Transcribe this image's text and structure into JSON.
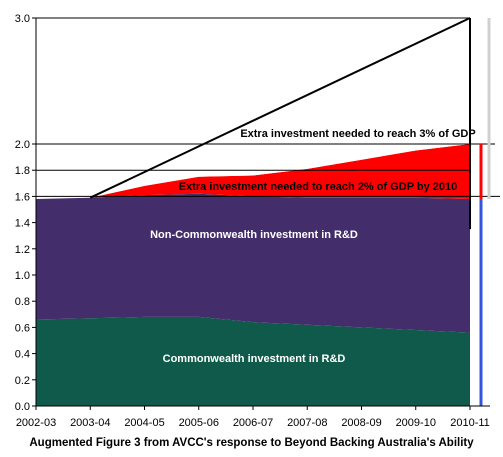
{
  "chart_data": {
    "type": "area",
    "categories": [
      "2002-03",
      "2003-04",
      "2004-05",
      "2005-06",
      "2006-07",
      "2007-08",
      "2008-09",
      "2009-10",
      "2010-11"
    ],
    "ylim": [
      0,
      3.0
    ],
    "yticks": [
      "0.0",
      "0.2",
      "0.4",
      "0.6",
      "0.8",
      "1.0",
      "1.2",
      "1.4",
      "1.6",
      "1.8",
      "2.0",
      "3.0"
    ],
    "ytick_values": [
      0,
      0.2,
      0.4,
      0.6,
      0.8,
      1.0,
      1.2,
      1.4,
      1.6,
      1.8,
      2.0,
      3.0
    ],
    "series": [
      {
        "name": "Commonwealth investment in R&D",
        "color": "#0f5a4b",
        "values": [
          0.66,
          0.67,
          0.68,
          0.68,
          0.64,
          0.62,
          0.6,
          0.58,
          0.56
        ]
      },
      {
        "name": "Non-Commonwealth investment in R&D",
        "color": "#432d6b",
        "values": [
          0.92,
          0.92,
          0.93,
          0.94,
          0.96,
          0.97,
          0.99,
          1.01,
          1.02
        ]
      },
      {
        "name": "Extra investment needed to reach 2% of GDP by 2010",
        "color": "#ff0000",
        "values": [
          0.0,
          0.0,
          0.07,
          0.13,
          0.16,
          0.22,
          0.29,
          0.36,
          0.42
        ]
      },
      {
        "name": "Extra investment needed to reach 3% of GDP",
        "color": "#ffffff",
        "values": [
          0.0,
          0.0,
          0.18,
          0.37,
          0.56,
          0.75,
          0.94,
          1.13,
          1.32
        ]
      }
    ],
    "totals": [
      1.58,
      1.59,
      1.68,
      1.75,
      1.76,
      1.81,
      1.88,
      1.95,
      2.0
    ],
    "target_3pct_line": {
      "from": "2003-04",
      "from_value": 1.59,
      "to": "2010-11",
      "to_value": 3.0
    },
    "side_bars": [
      {
        "name": "2% target",
        "color": "#ff0000",
        "range": [
          1.58,
          2.0
        ]
      },
      {
        "name": "3% target",
        "color": "#d0d0d0",
        "range": [
          1.58,
          3.0
        ]
      },
      {
        "name": "current",
        "color": "#3355dd",
        "range": [
          0,
          1.58
        ]
      }
    ],
    "caption": "Augmented Figure 3 from AVCC's response to Beyond Backing Australia's Ability"
  }
}
